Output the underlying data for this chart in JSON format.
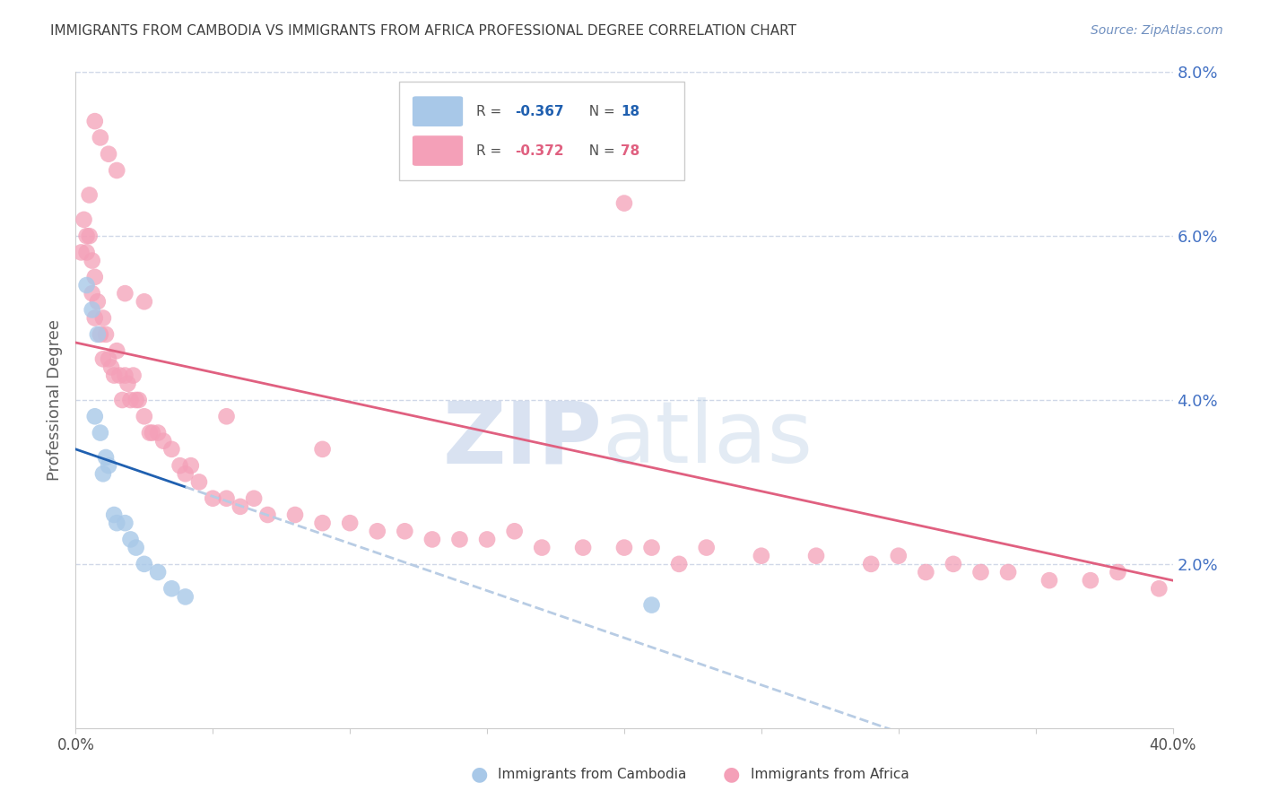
{
  "title": "IMMIGRANTS FROM CAMBODIA VS IMMIGRANTS FROM AFRICA PROFESSIONAL DEGREE CORRELATION CHART",
  "source": "Source: ZipAtlas.com",
  "ylabel": "Professional Degree",
  "xlim": [
    0.0,
    0.4
  ],
  "ylim": [
    0.0,
    0.08
  ],
  "xticks": [
    0.0,
    0.05,
    0.1,
    0.15,
    0.2,
    0.25,
    0.3,
    0.35,
    0.4
  ],
  "xtick_labels": [
    "0.0%",
    "",
    "",
    "",
    "",
    "",
    "",
    "",
    "40.0%"
  ],
  "yticks_right": [
    0.0,
    0.02,
    0.04,
    0.06,
    0.08
  ],
  "ytick_right_labels": [
    "",
    "2.0%",
    "4.0%",
    "6.0%",
    "8.0%"
  ],
  "legend_R_cambodia": "-0.367",
  "legend_N_cambodia": "18",
  "legend_R_africa": "-0.372",
  "legend_N_africa": "78",
  "cambodia_color": "#a8c8e8",
  "africa_color": "#f4a0b8",
  "cambodia_line_color": "#2060b0",
  "africa_line_color": "#e06080",
  "dashed_line_color": "#b8cce4",
  "background_color": "#ffffff",
  "grid_color": "#d0d8e8",
  "title_color": "#404040",
  "axis_label_color": "#606060",
  "right_axis_color": "#4472c4",
  "cambodia_x": [
    0.004,
    0.006,
    0.007,
    0.008,
    0.009,
    0.01,
    0.011,
    0.012,
    0.014,
    0.015,
    0.018,
    0.02,
    0.022,
    0.025,
    0.03,
    0.035,
    0.04,
    0.21
  ],
  "cambodia_y": [
    0.054,
    0.051,
    0.038,
    0.048,
    0.036,
    0.031,
    0.033,
    0.032,
    0.026,
    0.025,
    0.025,
    0.023,
    0.022,
    0.02,
    0.019,
    0.017,
    0.016,
    0.015
  ],
  "africa_x": [
    0.002,
    0.003,
    0.004,
    0.004,
    0.005,
    0.005,
    0.006,
    0.006,
    0.007,
    0.007,
    0.008,
    0.009,
    0.01,
    0.01,
    0.011,
    0.012,
    0.013,
    0.014,
    0.015,
    0.016,
    0.017,
    0.018,
    0.019,
    0.02,
    0.021,
    0.022,
    0.023,
    0.025,
    0.027,
    0.028,
    0.03,
    0.032,
    0.035,
    0.038,
    0.04,
    0.042,
    0.045,
    0.05,
    0.055,
    0.06,
    0.065,
    0.07,
    0.08,
    0.09,
    0.1,
    0.11,
    0.12,
    0.13,
    0.14,
    0.15,
    0.16,
    0.17,
    0.185,
    0.2,
    0.21,
    0.22,
    0.23,
    0.25,
    0.27,
    0.29,
    0.3,
    0.31,
    0.32,
    0.33,
    0.34,
    0.355,
    0.37,
    0.38,
    0.395,
    0.007,
    0.009,
    0.012,
    0.015,
    0.018,
    0.025,
    0.055,
    0.09,
    0.2
  ],
  "africa_y": [
    0.058,
    0.062,
    0.06,
    0.058,
    0.065,
    0.06,
    0.057,
    0.053,
    0.055,
    0.05,
    0.052,
    0.048,
    0.05,
    0.045,
    0.048,
    0.045,
    0.044,
    0.043,
    0.046,
    0.043,
    0.04,
    0.043,
    0.042,
    0.04,
    0.043,
    0.04,
    0.04,
    0.038,
    0.036,
    0.036,
    0.036,
    0.035,
    0.034,
    0.032,
    0.031,
    0.032,
    0.03,
    0.028,
    0.028,
    0.027,
    0.028,
    0.026,
    0.026,
    0.025,
    0.025,
    0.024,
    0.024,
    0.023,
    0.023,
    0.023,
    0.024,
    0.022,
    0.022,
    0.022,
    0.022,
    0.02,
    0.022,
    0.021,
    0.021,
    0.02,
    0.021,
    0.019,
    0.02,
    0.019,
    0.019,
    0.018,
    0.018,
    0.019,
    0.017,
    0.074,
    0.072,
    0.07,
    0.068,
    0.053,
    0.052,
    0.038,
    0.034,
    0.064
  ]
}
